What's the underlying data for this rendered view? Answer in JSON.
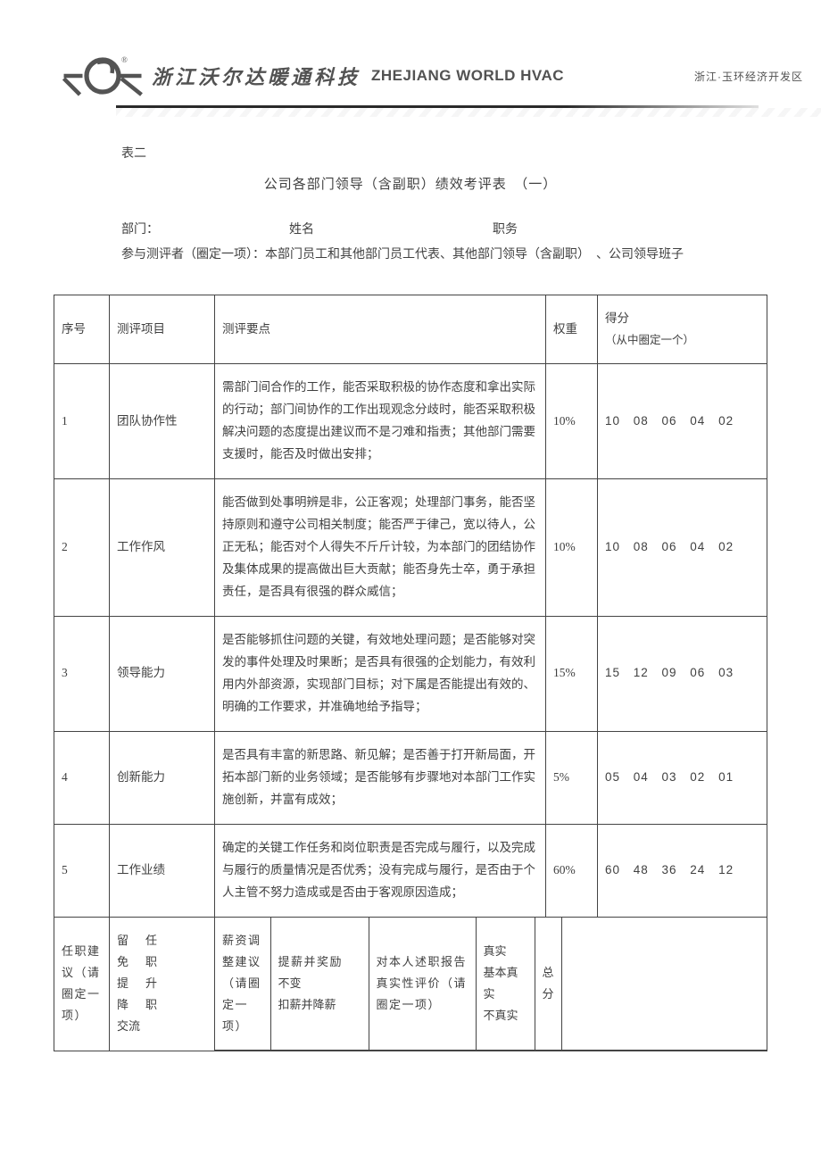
{
  "header": {
    "chinese_brand": "浙江沃尔达暖通科技",
    "english_brand": "ZHEJIANG WORLD HVAC",
    "location": "浙江·玉环经济开发区",
    "logo_colors": {
      "stroke": "#545454",
      "reg": "®"
    }
  },
  "doc": {
    "table_label": "表二",
    "title": "公司各部门领导（含副职）绩效考评表　（一）",
    "meta": {
      "dept_label": "部门：",
      "name_label": "姓名",
      "post_label": "职务",
      "reviewer_line": "参与测评者（圈定一项）：本部门员工和其他部门员工代表、其他部门领导（含副职）　、公司领导班子"
    }
  },
  "columns": {
    "no": "序号",
    "item": "测评项目",
    "points": "测评要点",
    "weight": "权重",
    "score": "得分",
    "score_sub": "（从中圈定一个）"
  },
  "rows": [
    {
      "no": "1",
      "item": "团队协作性",
      "points": "需部门间合作的工作，能否采取积极的协作态度和拿出实际的行动；部门间协作的工作出现观念分歧时，能否采取积极解决问题的态度提出建议而不是刁难和指责；其他部门需要支援时，能否及时做出安排；",
      "weight": "10%",
      "scores": "10  08  06  04  02"
    },
    {
      "no": "2",
      "item": "工作作风",
      "points": "能否做到处事明辨是非，公正客观；处理部门事务，能否坚持原则和遵守公司相关制度；能否严于律己，宽以待人，公正无私；能否对个人得失不斤斤计较，为本部门的团结协作及集体成果的提高做出巨大贡献；能否身先士卒，勇于承担责任，是否具有很强的群众威信；",
      "weight": "10%",
      "scores": "10  08  06  04  02"
    },
    {
      "no": "3",
      "item": "领导能力",
      "points": "是否能够抓住问题的关键，有效地处理问题；是否能够对突发的事件处理及时果断；是否具有很强的企划能力，有效利用内外部资源，实现部门目标；对下属是否能提出有效的、明确的工作要求，并准确地给予指导；",
      "weight": "15%",
      "scores": "15  12  09  06  03"
    },
    {
      "no": "4",
      "item": "创新能力",
      "points": "是否具有丰富的新思路、新见解；是否善于打开新局面，开拓本部门新的业务领域；是否能够有步骤地对本部门工作实施创新，并富有成效；",
      "weight": "5%",
      "scores": "05  04  03  02  01"
    },
    {
      "no": "5",
      "item": "工作业绩",
      "points": "确定的关键工作任务和岗位职责是否完成与履行，以及完成与履行的质量情况是否优秀；没有完成与履行，是否由于个人主管不努力造成或是否由于客观原因造成；",
      "weight": "60%",
      "scores": "60  48  36  24  12"
    }
  ],
  "footer": {
    "appoint_label": "任职建议（请圈定一项）",
    "appoint_opts": [
      "留　任",
      "免　职",
      "提　升",
      "降　职",
      "交流"
    ],
    "salary_label": "薪资调整建议（请圈定一项）",
    "salary_opts": [
      "提薪并奖励",
      "不变",
      "扣薪并降薪"
    ],
    "truth_label": "对本人述职报告真实性评价（请圈定一项）",
    "truth_opts": [
      "真实",
      "基本真实",
      "不真实"
    ],
    "total_label": "总分"
  },
  "colors": {
    "text": "#404040",
    "border": "#444444",
    "rule": "#2a2a2a"
  }
}
